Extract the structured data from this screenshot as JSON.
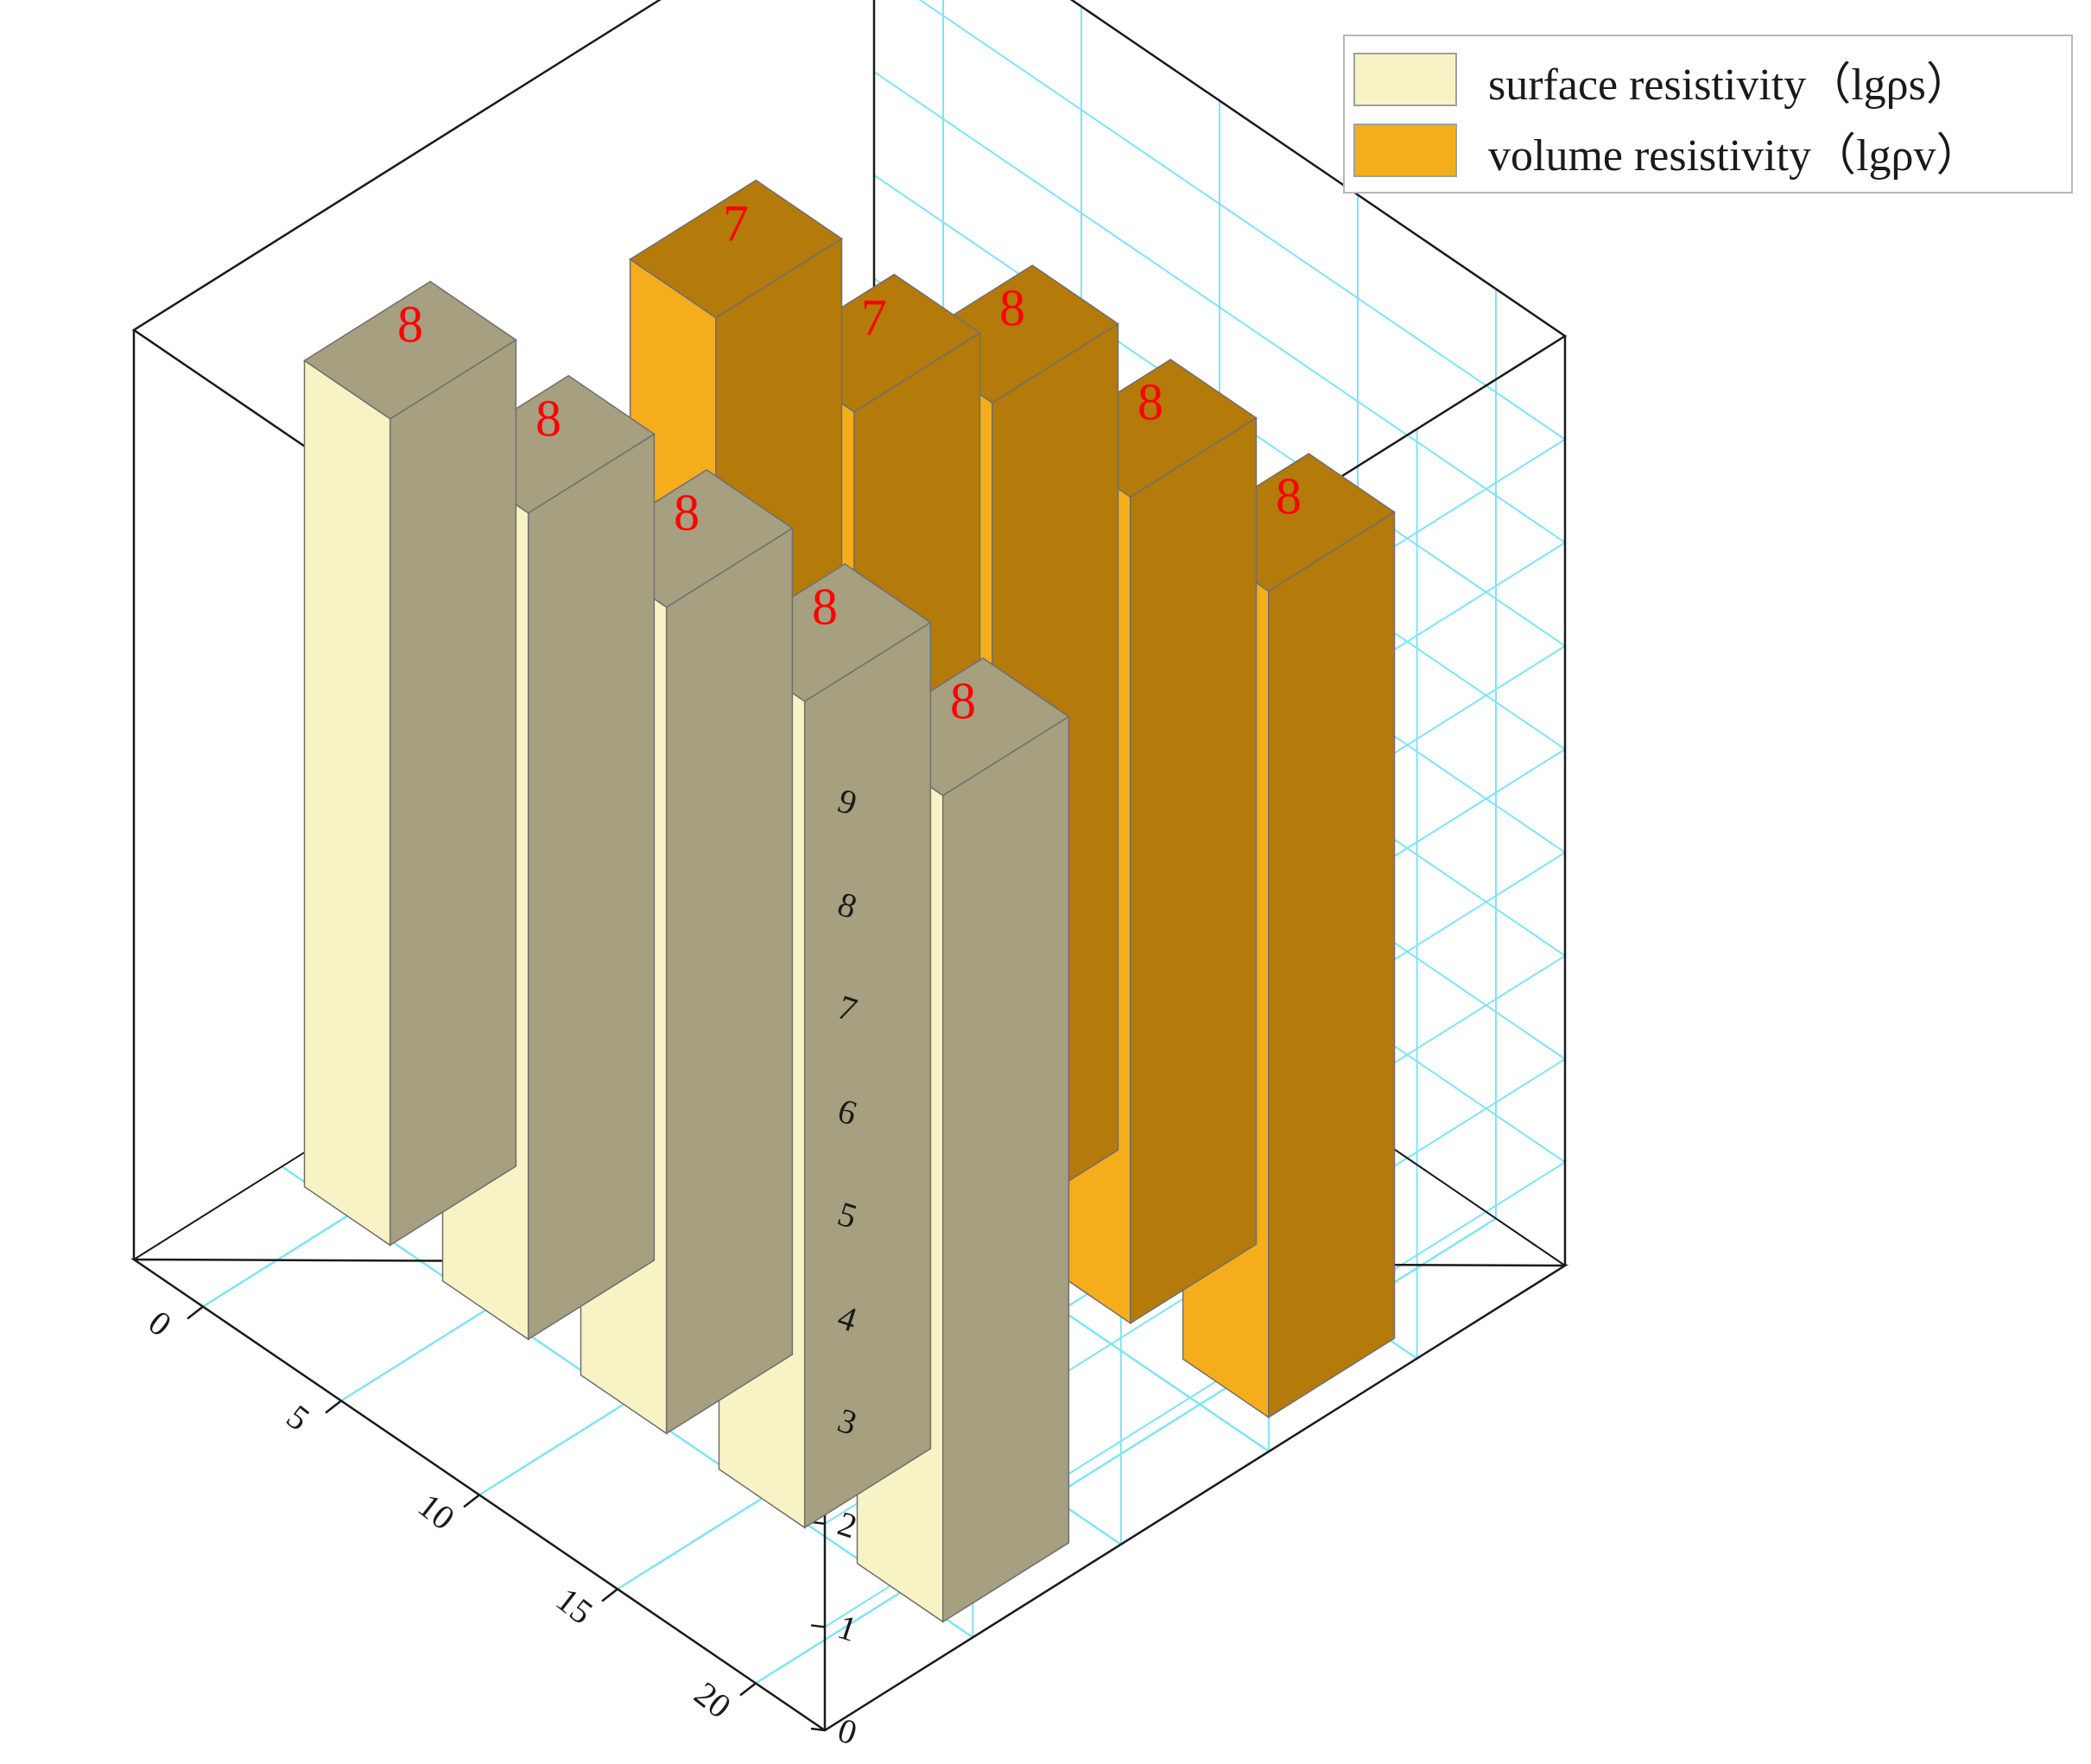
{
  "chart_data": {
    "type": "bar",
    "projection": "3d",
    "x_ticks": [
      0,
      5,
      10,
      15,
      20
    ],
    "z_ticks": [
      0,
      1,
      2,
      3,
      4,
      5,
      6,
      7,
      8,
      9
    ],
    "zlim": [
      0,
      9
    ],
    "grid": true,
    "legend_position": "top-right",
    "series": [
      {
        "name": "surface resistivity（lgρs）",
        "color": "#F8F3C4",
        "side_color": "#A69F80",
        "x": [
          0,
          5,
          10,
          15,
          20
        ],
        "values": [
          8,
          8,
          8,
          8,
          8
        ],
        "labels": [
          "8",
          "8",
          "8",
          "8",
          "8"
        ]
      },
      {
        "name": "volume resistivity（lgρv）",
        "color": "#F5AD1B",
        "side_color": "#B47A0A",
        "x": [
          0,
          5,
          10,
          15,
          20
        ],
        "values": [
          7,
          7,
          8,
          8,
          8
        ],
        "labels": [
          "7",
          "7",
          "8",
          "8",
          "8"
        ]
      }
    ],
    "data_label_color": "#FF0000"
  }
}
